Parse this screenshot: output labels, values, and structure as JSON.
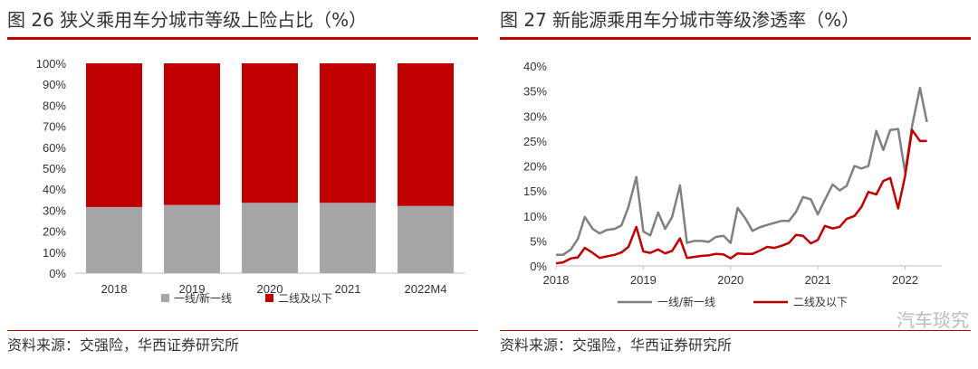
{
  "left_panel": {
    "title": "图 26 狭义乘用车分城市等级上险占比（%）",
    "source": "资料来源：交强险，华西证券研究所"
  },
  "right_panel": {
    "title": "图 27 新能源乘用车分城市等级渗透率（%）",
    "source": "资料来源：交强险，华西证券研究所"
  },
  "watermark": "汽车琰究",
  "colors": {
    "gray": "#a6a6a6",
    "red": "#c00000",
    "line_gray": "#808080",
    "line_red": "#c00000"
  },
  "chart_data": [
    {
      "type": "bar",
      "stacked": true,
      "categories": [
        "2018",
        "2019",
        "2020",
        "2021",
        "2022M4"
      ],
      "yticks": [
        "0%",
        "10%",
        "20%",
        "30%",
        "40%",
        "50%",
        "60%",
        "70%",
        "80%",
        "90%",
        "100%"
      ],
      "ylim": [
        0,
        100
      ],
      "legend_position": "bottom",
      "series": [
        {
          "name": "一线/新一线",
          "values": [
            31.5,
            32.5,
            33.5,
            33.5,
            32
          ]
        },
        {
          "name": "二线及以下",
          "values": [
            68.5,
            67.5,
            66.5,
            66.5,
            68
          ]
        }
      ]
    },
    {
      "type": "line",
      "xticks": [
        "2018",
        "2019",
        "2020",
        "2021",
        "2022"
      ],
      "yticks": [
        "0%",
        "5%",
        "10%",
        "15%",
        "20%",
        "25%",
        "30%",
        "35%",
        "40%"
      ],
      "ylim": [
        0,
        40
      ],
      "xlim": [
        2018.0,
        2022.42
      ],
      "legend_position": "bottom",
      "series": [
        {
          "name": "一线/新一线",
          "x": [
            2018.0,
            2018.08,
            2018.17,
            2018.25,
            2018.33,
            2018.42,
            2018.5,
            2018.58,
            2018.67,
            2018.75,
            2018.83,
            2018.92,
            2019.0,
            2019.08,
            2019.17,
            2019.25,
            2019.33,
            2019.42,
            2019.5,
            2019.58,
            2019.67,
            2019.75,
            2019.83,
            2019.92,
            2020.0,
            2020.08,
            2020.17,
            2020.25,
            2020.33,
            2020.42,
            2020.5,
            2020.58,
            2020.67,
            2020.75,
            2020.83,
            2020.92,
            2021.0,
            2021.08,
            2021.17,
            2021.25,
            2021.33,
            2021.42,
            2021.5,
            2021.58,
            2021.67,
            2021.75,
            2021.83,
            2021.92,
            2022.0,
            2022.08,
            2022.17,
            2022.25
          ],
          "y": [
            2.2,
            2.2,
            3.3,
            5.4,
            9.8,
            7.4,
            6.5,
            7.2,
            7.4,
            8.1,
            11.8,
            17.8,
            6.9,
            6.1,
            10.7,
            7.4,
            9.8,
            16.1,
            4.6,
            5.0,
            5.0,
            4.8,
            5.8,
            6.0,
            4.6,
            11.6,
            9.5,
            7.0,
            7.7,
            8.2,
            8.6,
            9.0,
            9.0,
            10.8,
            13.8,
            13.3,
            10.3,
            13.2,
            16.3,
            15.1,
            16.0,
            20.0,
            19.5,
            20.0,
            27.0,
            23.2,
            27.2,
            27.4,
            18.7,
            28.0,
            35.6,
            28.8
          ]
        },
        {
          "name": "二线及以下",
          "x": [
            2018.0,
            2018.08,
            2018.17,
            2018.25,
            2018.33,
            2018.42,
            2018.5,
            2018.58,
            2018.67,
            2018.75,
            2018.83,
            2018.92,
            2019.0,
            2019.08,
            2019.17,
            2019.25,
            2019.33,
            2019.42,
            2019.5,
            2019.58,
            2019.67,
            2019.75,
            2019.83,
            2019.92,
            2020.0,
            2020.08,
            2020.17,
            2020.25,
            2020.33,
            2020.42,
            2020.5,
            2020.58,
            2020.67,
            2020.75,
            2020.83,
            2020.92,
            2021.0,
            2021.08,
            2021.17,
            2021.25,
            2021.33,
            2021.42,
            2021.5,
            2021.58,
            2021.67,
            2021.75,
            2021.83,
            2021.92,
            2022.0,
            2022.08,
            2022.17,
            2022.25
          ],
          "y": [
            0.5,
            0.7,
            1.5,
            1.7,
            3.6,
            2.6,
            1.6,
            1.9,
            2.2,
            2.7,
            3.8,
            7.8,
            2.9,
            2.6,
            3.3,
            2.5,
            3.0,
            5.5,
            1.6,
            1.8,
            2.0,
            2.1,
            2.4,
            2.3,
            1.5,
            2.5,
            2.4,
            2.4,
            3.0,
            3.8,
            3.6,
            4.0,
            4.6,
            6.2,
            6.0,
            4.5,
            5.2,
            8.0,
            7.5,
            7.8,
            9.4,
            10.0,
            11.8,
            14.8,
            14.3,
            17.0,
            17.6,
            11.5,
            18.0,
            27.2,
            25.0,
            25.0
          ]
        }
      ]
    }
  ]
}
